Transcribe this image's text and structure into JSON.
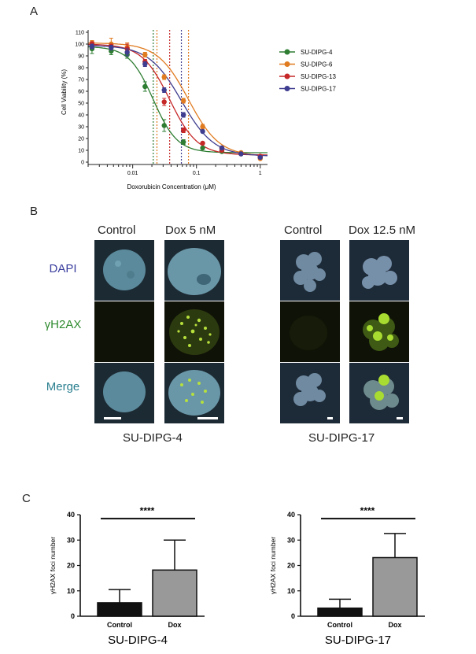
{
  "panels": {
    "a": "A",
    "b": "B",
    "c": "C"
  },
  "chart_data": [
    {
      "type": "scatter",
      "subtype": "dose-response curves with error bars",
      "xscale": "log",
      "xlabel": "Doxorubicin Concentration (μM)",
      "ylabel": "Cell Viability (%)",
      "xlim": [
        0.002,
        1.3
      ],
      "ylim": [
        -2,
        112
      ],
      "xticklabels": [
        "0.01",
        "0.1",
        "1"
      ],
      "yticks": [
        0,
        10,
        20,
        30,
        40,
        50,
        60,
        70,
        80,
        90,
        100,
        110
      ],
      "legend_position": "right",
      "x": [
        0.0023,
        0.0046,
        0.0082,
        0.0156,
        0.0312,
        0.0625,
        0.125,
        0.25,
        0.5,
        1.0
      ],
      "series": [
        {
          "name": "SU-DIPG-4",
          "color": "#2e7d32",
          "values": [
            96,
            94,
            91,
            64,
            31,
            17,
            12,
            9,
            7,
            4
          ],
          "errors": [
            4,
            3,
            3,
            4,
            5,
            2,
            1,
            1,
            1,
            1
          ],
          "ic50": 0.021,
          "hill": 2.3,
          "top": 98,
          "bottom": 8
        },
        {
          "name": "SU-DIPG-6",
          "color": "#e07b20",
          "values": [
            101,
            100,
            97,
            91,
            72,
            52,
            30,
            12,
            8,
            3
          ],
          "errors": [
            2,
            5,
            4,
            2,
            2,
            2,
            2,
            1,
            1,
            1
          ],
          "ic50": 0.075,
          "hill": 1.8,
          "top": 101,
          "bottom": 5
        },
        {
          "name": "SU-DIPG-13",
          "color": "#c62828",
          "values": [
            100,
            98,
            96,
            85,
            51,
            27,
            16,
            10,
            7,
            5
          ],
          "errors": [
            2,
            2,
            4,
            2,
            3,
            2,
            1,
            1,
            1,
            1
          ],
          "ic50": 0.038,
          "hill": 2.0,
          "top": 100,
          "bottom": 6
        },
        {
          "name": "SU-DIPG-17",
          "color": "#3f3d8f",
          "values": [
            98,
            97,
            93,
            83,
            61,
            40,
            26,
            12,
            7,
            4
          ],
          "errors": [
            2,
            2,
            3,
            2,
            2,
            2,
            1,
            1,
            1,
            1
          ],
          "ic50": 0.058,
          "hill": 1.7,
          "top": 99,
          "bottom": 5
        }
      ],
      "vlines": [
        {
          "x": 0.021,
          "color": "#2e7d32"
        },
        {
          "x": 0.024,
          "color": "#e07b20"
        },
        {
          "x": 0.038,
          "color": "#c62828"
        },
        {
          "x": 0.058,
          "color": "#3f3d8f"
        },
        {
          "x": 0.075,
          "color": "#e07b20"
        }
      ]
    },
    {
      "type": "bar",
      "title": "SU-DIPG-4",
      "ylabel": "γH2AX foci number",
      "ylim": [
        0,
        40
      ],
      "yticks": [
        0,
        10,
        20,
        30,
        40
      ],
      "categories": [
        "Control",
        "Dox"
      ],
      "values": [
        5.3,
        18.2
      ],
      "errors": [
        5.2,
        11.8
      ],
      "colors": [
        "#111111",
        "#999999"
      ],
      "significance": "****"
    },
    {
      "type": "bar",
      "title": "SU-DIPG-17",
      "ylabel": "γH2AX foci number",
      "ylim": [
        0,
        40
      ],
      "yticks": [
        0,
        10,
        20,
        30,
        40
      ],
      "categories": [
        "Control",
        "Dox"
      ],
      "values": [
        3.2,
        23.1
      ],
      "errors": [
        3.5,
        9.5
      ],
      "colors": [
        "#111111",
        "#999999"
      ],
      "significance": "****"
    }
  ],
  "microscopy": {
    "left": {
      "col1": "Control",
      "col2": "Dox 5 nM",
      "caption": "SU-DIPG-4"
    },
    "right": {
      "col1": "Control",
      "col2": "Dox 12.5 nM",
      "caption": "SU-DIPG-17"
    },
    "rows": [
      "DAPI",
      "γH2AX",
      "Merge"
    ],
    "row_colors": [
      "#3b3f9e",
      "#2e8b2e",
      "#2a7f8f"
    ]
  }
}
